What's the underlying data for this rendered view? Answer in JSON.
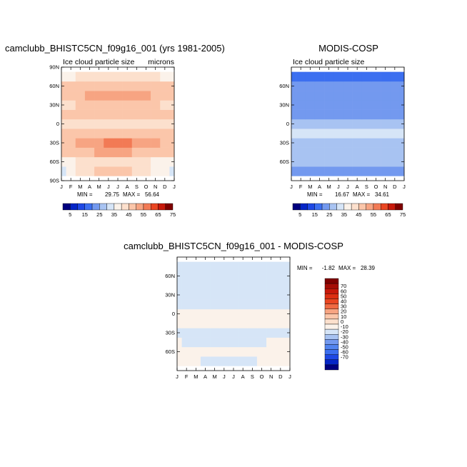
{
  "chart_data": [
    {
      "type": "heatmap",
      "title": "camclubb_BHISTC5CN_f09g16_001 (yrs 1981-2005)",
      "left_label": "Ice cloud particle size",
      "right_label": "microns",
      "x_ticks": [
        "J",
        "F",
        "M",
        "A",
        "M",
        "J",
        "J",
        "A",
        "S",
        "O",
        "N",
        "D",
        "J"
      ],
      "y_ticks": [
        "90N",
        "60N",
        "30N",
        "0",
        "30S",
        "60S",
        "90S"
      ],
      "stats": {
        "min_label": "MIN =",
        "min": "29.75",
        "max_label": "MAX =",
        "max": "56.64"
      },
      "colorbar": {
        "labels": [
          "5",
          "15",
          "25",
          "35",
          "45",
          "55",
          "65",
          "75"
        ],
        "colors": [
          "#00007f",
          "#0526c7",
          "#1e48e5",
          "#3c6ff0",
          "#7399ef",
          "#a8c3f2",
          "#d6e5f7",
          "#fbf2ea",
          "#fce0cd",
          "#fbc6aa",
          "#f7a482",
          "#f27a55",
          "#ea4622",
          "#c8190b",
          "#7f0000"
        ]
      },
      "field": {
        "x": [
          "J",
          "F",
          "M",
          "A",
          "M",
          "J",
          "J",
          "A",
          "S",
          "O",
          "N",
          "D",
          "J"
        ],
        "y": [
          -90,
          -75,
          -60,
          -45,
          -30,
          -15,
          0,
          15,
          30,
          45,
          60,
          75,
          90
        ],
        "z": [
          [
            null,
            null,
            null,
            null,
            null,
            null,
            null,
            null,
            null,
            null,
            null,
            null,
            null
          ],
          [
            34,
            35,
            40,
            44,
            46,
            46,
            46,
            45,
            43,
            40,
            37,
            35,
            34
          ],
          [
            37,
            38,
            40,
            42,
            44,
            44,
            44,
            44,
            43,
            41,
            39,
            38,
            37
          ],
          [
            47,
            48,
            49,
            49,
            50,
            50,
            50,
            50,
            49,
            48,
            47,
            47,
            47
          ],
          [
            48,
            49,
            50,
            52,
            53,
            55,
            56,
            55,
            53,
            51,
            50,
            49,
            48
          ],
          [
            46,
            46,
            47,
            47,
            48,
            48,
            48,
            48,
            47,
            46,
            46,
            46,
            46
          ],
          [
            43,
            43,
            42,
            42,
            43,
            43,
            43,
            43,
            43,
            43,
            43,
            43,
            43
          ],
          [
            47,
            47,
            48,
            48,
            49,
            49,
            49,
            48,
            48,
            47,
            47,
            47,
            47
          ],
          [
            44,
            44,
            45,
            46,
            47,
            48,
            48,
            48,
            47,
            46,
            45,
            44,
            44
          ],
          [
            48,
            48,
            49,
            50,
            51,
            52,
            52,
            52,
            51,
            50,
            49,
            48,
            48
          ],
          [
            45,
            45,
            46,
            46,
            47,
            48,
            48,
            48,
            47,
            46,
            45,
            45,
            45
          ],
          [
            38,
            39,
            40,
            41,
            42,
            44,
            44,
            44,
            42,
            41,
            40,
            39,
            38
          ],
          [
            null,
            null,
            null,
            null,
            null,
            null,
            null,
            null,
            null,
            null,
            null,
            null,
            null
          ]
        ]
      }
    },
    {
      "type": "heatmap",
      "title": "MODIS-COSP",
      "left_label": "Ice cloud particle size",
      "x_ticks": [
        "J",
        "F",
        "M",
        "A",
        "M",
        "J",
        "J",
        "A",
        "S",
        "O",
        "N",
        "D",
        "J"
      ],
      "y_ticks": [
        "60N",
        "30N",
        "0",
        "30S",
        "60S"
      ],
      "stats": {
        "min_label": "MIN =",
        "min": "16.67",
        "max_label": "MAX =",
        "max": "34.61"
      },
      "colorbar": {
        "labels": [
          "5",
          "15",
          "25",
          "35",
          "45",
          "55",
          "65",
          "75"
        ],
        "colors": [
          "#00007f",
          "#0526c7",
          "#1e48e5",
          "#3c6ff0",
          "#7399ef",
          "#a8c3f2",
          "#d6e5f7",
          "#fbf2ea",
          "#fce0cd",
          "#fbc6aa",
          "#f7a482",
          "#f27a55",
          "#ea4622",
          "#c8190b",
          "#7f0000"
        ]
      },
      "field": {
        "x": [
          "J",
          "F",
          "M",
          "A",
          "M",
          "J",
          "J",
          "A",
          "S",
          "O",
          "N",
          "D",
          "J"
        ],
        "y": [
          -90,
          -75,
          -60,
          -45,
          -30,
          -15,
          0,
          15,
          30,
          45,
          60,
          75,
          90
        ],
        "z": [
          [
            null,
            null,
            null,
            null,
            null,
            null,
            null,
            null,
            null,
            null,
            null,
            null,
            null
          ],
          [
            23,
            22,
            21,
            21,
            21,
            21,
            21,
            21,
            21,
            21,
            21,
            22,
            23
          ],
          [
            27,
            27,
            27,
            27,
            27,
            27,
            27,
            27,
            27,
            27,
            27,
            27,
            27
          ],
          [
            28,
            28,
            28,
            28,
            28,
            28,
            28,
            28,
            28,
            28,
            28,
            28,
            28
          ],
          [
            27,
            27,
            27,
            27,
            27,
            27,
            27,
            27,
            27,
            27,
            27,
            27,
            27
          ],
          [
            31,
            31,
            31,
            31,
            31,
            31,
            31,
            31,
            31,
            31,
            31,
            31,
            31
          ],
          [
            28,
            28,
            28,
            28,
            28,
            28,
            28,
            28,
            28,
            28,
            28,
            28,
            28
          ],
          [
            24,
            24,
            24,
            24,
            24,
            24,
            24,
            24,
            24,
            24,
            24,
            24,
            24
          ],
          [
            22,
            22,
            22,
            22,
            22,
            22,
            22,
            22,
            22,
            22,
            22,
            22,
            22
          ],
          [
            22,
            22,
            22,
            22,
            22,
            22,
            22,
            22,
            22,
            22,
            22,
            22,
            22
          ],
          [
            21,
            21,
            21,
            21,
            21,
            21,
            21,
            21,
            21,
            21,
            21,
            21,
            21
          ],
          [
            18,
            18,
            18,
            19,
            19,
            19,
            19,
            19,
            19,
            19,
            18,
            18,
            18
          ],
          [
            null,
            null,
            null,
            null,
            null,
            null,
            null,
            null,
            null,
            null,
            null,
            null,
            null
          ]
        ]
      }
    },
    {
      "type": "heatmap",
      "title": "camclubb_BHISTC5CN_f09g16_001 - MODIS-COSP",
      "x_ticks": [
        "J",
        "F",
        "M",
        "A",
        "M",
        "J",
        "J",
        "A",
        "S",
        "O",
        "N",
        "D",
        "J"
      ],
      "y_ticks": [
        "60N",
        "30N",
        "0",
        "30S",
        "60S"
      ],
      "stats": {
        "min_label": "MIN =",
        "min": "-1.82",
        "max_label": "MAX =",
        "max": "28.39"
      },
      "colorbar": {
        "labels": [
          "70",
          "60",
          "50",
          "40",
          "30",
          "20",
          "10",
          "0",
          "-10",
          "-20",
          "-30",
          "-40",
          "-50",
          "-60",
          "-70"
        ],
        "colors": [
          "#7f0000",
          "#a50c05",
          "#c8190b",
          "#dd2f13",
          "#ea4622",
          "#f06a43",
          "#f7a482",
          "#fbc6aa",
          "#fce0cd",
          "#fbf2ea",
          "#d6e5f7",
          "#a8c3f2",
          "#7399ef",
          "#5284ef",
          "#3c6ff0",
          "#1e48e5",
          "#0526c7",
          "#00007f"
        ]
      },
      "field": {
        "x": [
          "J",
          "F",
          "M",
          "A",
          "M",
          "J",
          "J",
          "A",
          "S",
          "O",
          "N",
          "D",
          "J"
        ],
        "y": [
          -90,
          -75,
          -60,
          -45,
          -30,
          -15,
          0,
          15,
          30,
          45,
          60,
          75,
          90
        ],
        "z": [
          [
            null,
            null,
            null,
            null,
            null,
            null,
            null,
            null,
            null,
            null,
            null,
            null,
            null
          ],
          [
            11,
            13,
            19,
            23,
            25,
            25,
            25,
            24,
            22,
            19,
            16,
            13,
            11
          ],
          [
            10,
            11,
            13,
            15,
            17,
            17,
            17,
            17,
            16,
            14,
            12,
            11,
            10
          ],
          [
            19,
            20,
            21,
            21,
            22,
            22,
            22,
            22,
            21,
            20,
            19,
            19,
            19
          ],
          [
            21,
            22,
            23,
            25,
            26,
            28,
            28,
            28,
            26,
            24,
            23,
            22,
            21
          ],
          [
            15,
            15,
            16,
            16,
            17,
            17,
            17,
            17,
            16,
            15,
            15,
            15,
            15
          ],
          [
            15,
            15,
            14,
            14,
            15,
            15,
            15,
            15,
            15,
            15,
            15,
            15,
            15
          ],
          [
            23,
            23,
            24,
            24,
            25,
            25,
            25,
            24,
            24,
            23,
            23,
            23,
            23
          ],
          [
            22,
            22,
            23,
            24,
            25,
            26,
            26,
            26,
            25,
            24,
            23,
            22,
            22
          ],
          [
            26,
            26,
            27,
            28,
            28,
            28,
            28,
            28,
            28,
            28,
            27,
            26,
            26
          ],
          [
            24,
            24,
            25,
            25,
            26,
            27,
            27,
            27,
            26,
            25,
            24,
            24,
            24
          ],
          [
            20,
            21,
            22,
            22,
            23,
            25,
            25,
            25,
            23,
            22,
            22,
            21,
            20
          ],
          [
            null,
            null,
            null,
            null,
            null,
            null,
            null,
            null,
            null,
            null,
            null,
            null,
            null
          ]
        ]
      }
    }
  ]
}
